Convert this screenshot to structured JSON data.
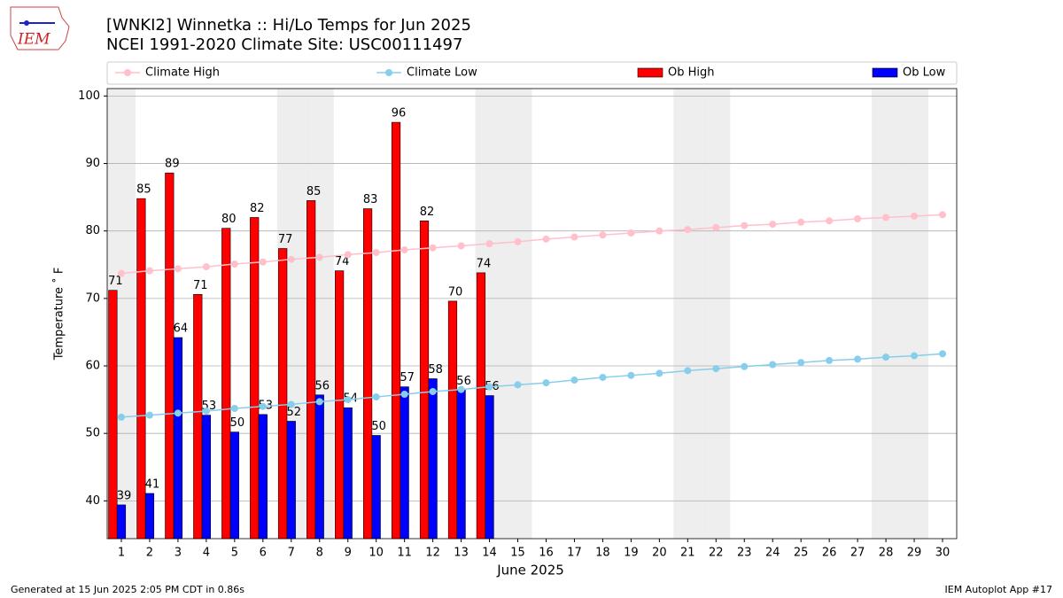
{
  "chart_data": {
    "type": "bar",
    "title": "[WNKI2] Winnetka :: Hi/Lo Temps for Jun 2025",
    "subtitle": "NCEI 1991-2020 Climate Site: USC00111497",
    "logo_text": "IEM",
    "x_label": "June 2025",
    "y_label": "Temperature ˚ F",
    "footer_left": "Generated at 15 Jun 2025 2:05 PM CDT in 0.86s",
    "footer_right": "IEM Autoplot App #17",
    "x": [
      1,
      2,
      3,
      4,
      5,
      6,
      7,
      8,
      9,
      10,
      11,
      12,
      13,
      14,
      15,
      16,
      17,
      18,
      19,
      20,
      21,
      22,
      23,
      24,
      25,
      26,
      27,
      28,
      29,
      30
    ],
    "xlim": [
      0.5,
      30.5
    ],
    "xticks": [
      1,
      2,
      3,
      4,
      5,
      6,
      7,
      8,
      9,
      10,
      11,
      12,
      13,
      14,
      15,
      16,
      17,
      18,
      19,
      20,
      21,
      22,
      23,
      24,
      25,
      26,
      27,
      28,
      29,
      30
    ],
    "ylim": [
      34.4,
      101.1
    ],
    "yticks": [
      40,
      50,
      60,
      70,
      80,
      90,
      100
    ],
    "grid": true,
    "shaded_days": [
      1,
      7,
      8,
      14,
      15,
      21,
      22,
      28,
      29
    ],
    "shade_color": "#eeeeee",
    "series": [
      {
        "name": "Climate High",
        "kind": "line",
        "color": "#ffc0cb",
        "values": [
          73.7,
          74.1,
          74.4,
          74.7,
          75.1,
          75.4,
          75.8,
          76.1,
          76.5,
          76.8,
          77.2,
          77.5,
          77.8,
          78.1,
          78.4,
          78.8,
          79.1,
          79.4,
          79.7,
          80.0,
          80.2,
          80.5,
          80.8,
          81.0,
          81.3,
          81.5,
          81.8,
          82.0,
          82.2,
          82.4
        ]
      },
      {
        "name": "Climate Low",
        "kind": "line",
        "color": "#87ceeb",
        "values": [
          52.4,
          52.7,
          53.0,
          53.3,
          53.7,
          54.0,
          54.3,
          54.7,
          55.0,
          55.4,
          55.8,
          56.2,
          56.5,
          56.9,
          57.2,
          57.5,
          57.9,
          58.3,
          58.6,
          58.9,
          59.3,
          59.6,
          59.9,
          60.2,
          60.5,
          60.8,
          61.0,
          61.3,
          61.5,
          61.8
        ]
      },
      {
        "name": "Ob High",
        "kind": "bar",
        "color": "#ff0000",
        "offset": -0.3,
        "values": [
          71.2,
          84.8,
          88.6,
          70.6,
          80.4,
          82.0,
          77.4,
          84.5,
          74.1,
          83.3,
          96.1,
          81.5,
          69.6,
          73.8,
          null,
          null,
          null,
          null,
          null,
          null,
          null,
          null,
          null,
          null,
          null,
          null,
          null,
          null,
          null,
          null
        ],
        "value_labels": [
          "71",
          "85",
          "89",
          "71",
          "80",
          "82",
          "77",
          "85",
          "74",
          "83",
          "96",
          "82",
          "70",
          "74",
          null,
          null,
          null,
          null,
          null,
          null,
          null,
          null,
          null,
          null,
          null,
          null,
          null,
          null,
          null,
          null
        ]
      },
      {
        "name": "Ob Low",
        "kind": "bar",
        "color": "#0000ff",
        "offset": 0,
        "values": [
          39.4,
          41.1,
          64.2,
          52.7,
          50.2,
          52.8,
          51.8,
          55.7,
          53.8,
          49.7,
          56.9,
          58.1,
          56.4,
          55.6,
          null,
          null,
          null,
          null,
          null,
          null,
          null,
          null,
          null,
          null,
          null,
          null,
          null,
          null,
          null,
          null
        ],
        "value_labels": [
          "39",
          "41",
          "64",
          "53",
          "50",
          "53",
          "52",
          "56",
          "54",
          "50",
          "57",
          "58",
          "56",
          "56",
          null,
          null,
          null,
          null,
          null,
          null,
          null,
          null,
          null,
          null,
          null,
          null,
          null,
          null,
          null,
          null
        ]
      }
    ]
  }
}
